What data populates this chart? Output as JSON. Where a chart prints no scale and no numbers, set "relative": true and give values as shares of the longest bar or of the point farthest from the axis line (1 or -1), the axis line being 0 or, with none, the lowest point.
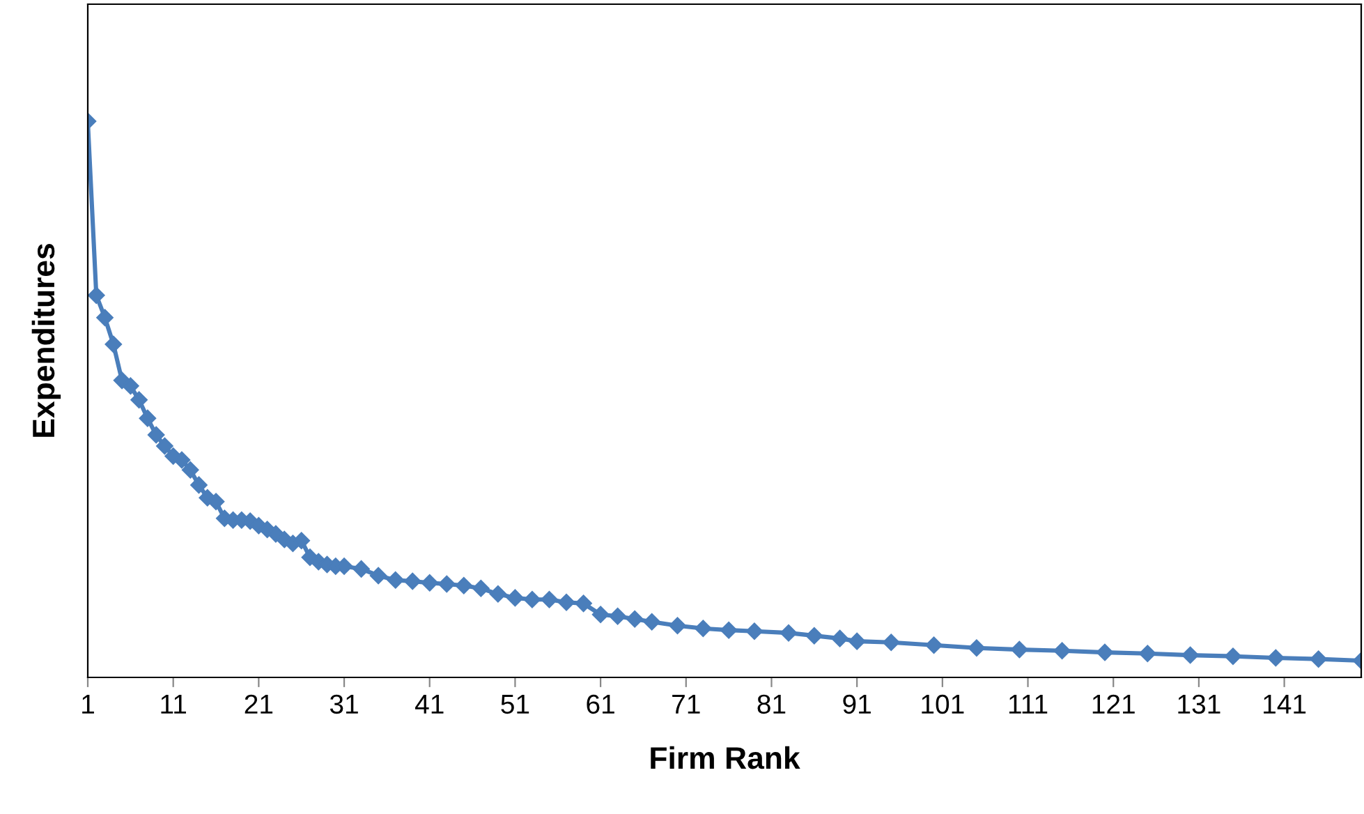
{
  "chart_data": {
    "type": "line",
    "xlabel": "Firm Rank",
    "ylabel": "Expenditures",
    "relative": true,
    "x": [
      1,
      2,
      3,
      4,
      5,
      6,
      7,
      8,
      9,
      10,
      11,
      12,
      13,
      14,
      15,
      16,
      17,
      18,
      19,
      20,
      21,
      22,
      23,
      24,
      25,
      26,
      27,
      28,
      29,
      30,
      31,
      33,
      35,
      37,
      39,
      41,
      43,
      45,
      47,
      49,
      51,
      53,
      55,
      57,
      59,
      61,
      63,
      65,
      67,
      70,
      73,
      76,
      79,
      83,
      86,
      89,
      91,
      95,
      100,
      105,
      110,
      115,
      120,
      125,
      130,
      135,
      140,
      145,
      150
    ],
    "series": [
      {
        "color": "#4a7ebb",
        "values": [
          1,
          0.687,
          0.647,
          0.599,
          0.534,
          0.524,
          0.499,
          0.466,
          0.436,
          0.416,
          0.398,
          0.391,
          0.373,
          0.346,
          0.323,
          0.316,
          0.286,
          0.283,
          0.283,
          0.281,
          0.273,
          0.266,
          0.258,
          0.248,
          0.241,
          0.246,
          0.216,
          0.208,
          0.203,
          0.2,
          0.2,
          0.195,
          0.183,
          0.175,
          0.173,
          0.17,
          0.168,
          0.165,
          0.16,
          0.15,
          0.143,
          0.14,
          0.14,
          0.135,
          0.133,
          0.113,
          0.11,
          0.105,
          0.1,
          0.093,
          0.088,
          0.085,
          0.083,
          0.08,
          0.075,
          0.07,
          0.065,
          0.063,
          0.058,
          0.053,
          0.05,
          0.048,
          0.045,
          0.043,
          0.04,
          0.038,
          0.035,
          0.033,
          0.03
        ]
      }
    ],
    "xlim": [
      1,
      150
    ],
    "xticks": [
      1,
      11,
      21,
      31,
      41,
      51,
      61,
      71,
      81,
      91,
      101,
      111,
      121,
      131,
      141
    ],
    "marker": "diamond",
    "line_style": "solid",
    "grid": false,
    "legend": false
  }
}
